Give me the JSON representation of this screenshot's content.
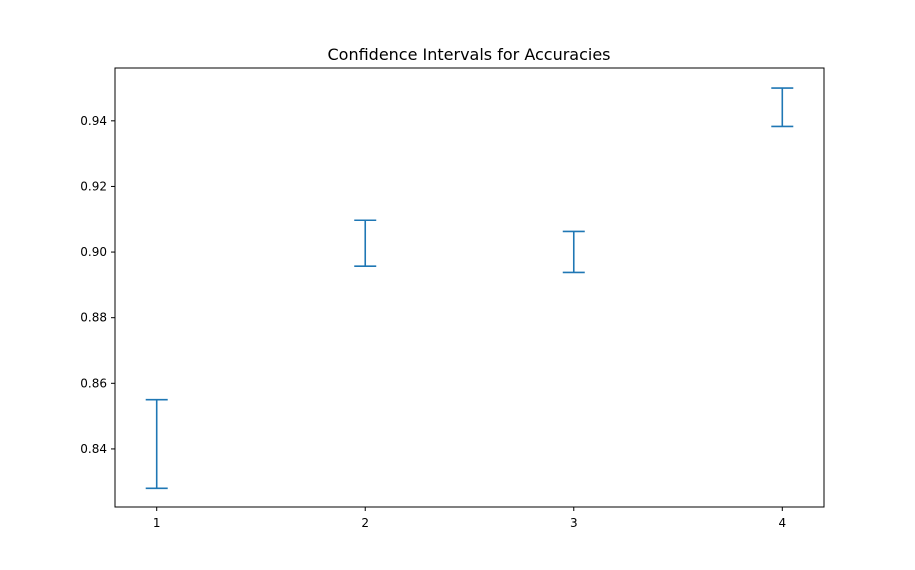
{
  "chart_data": {
    "type": "errorbar",
    "title": "Confidence Intervals for Accuracies",
    "xlabel": "",
    "ylabel": "",
    "x": [
      1,
      2,
      3,
      4
    ],
    "intervals": [
      {
        "x": 1,
        "low": 0.828,
        "high": 0.855
      },
      {
        "x": 2,
        "low": 0.8957,
        "high": 0.9097
      },
      {
        "x": 3,
        "low": 0.8938,
        "high": 0.9063
      },
      {
        "x": 4,
        "low": 0.9383,
        "high": 0.95
      }
    ],
    "xlim": [
      0.8,
      4.2
    ],
    "ylim": [
      0.8223,
      0.9561
    ],
    "xticks": [
      "1",
      "2",
      "3",
      "4"
    ],
    "yticks": [
      "0.84",
      "0.86",
      "0.88",
      "0.90",
      "0.92",
      "0.94"
    ],
    "color": "#1f77b4",
    "grid": false
  }
}
